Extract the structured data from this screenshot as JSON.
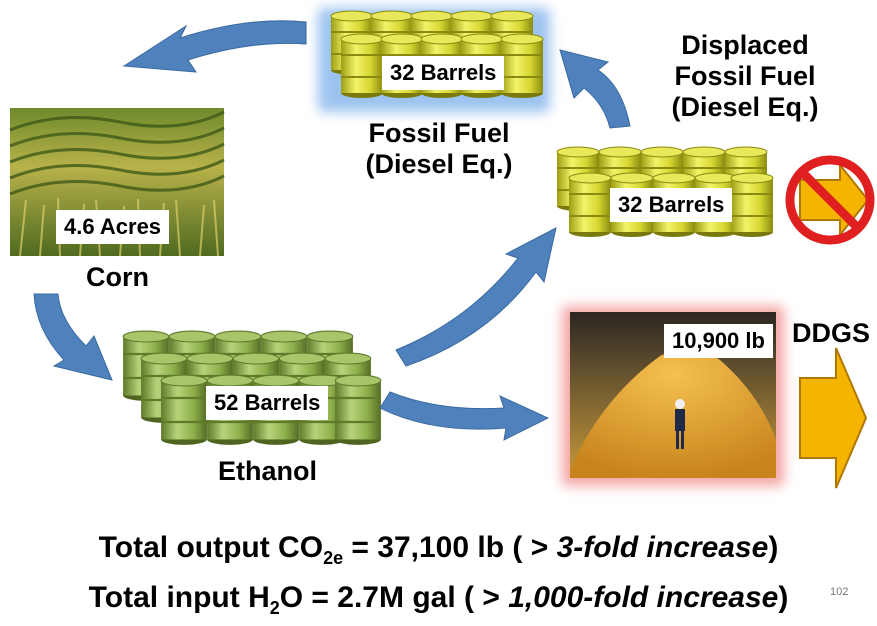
{
  "corn": {
    "area_label": "4.6 Acres",
    "caption": "Corn"
  },
  "ethanol": {
    "quantity_label": "52 Barrels",
    "caption": "Ethanol"
  },
  "fossil_fuel": {
    "quantity_label": "32 Barrels",
    "caption_line1": "Fossil Fuel",
    "caption_line2": "(Diesel Eq.)"
  },
  "displaced_fuel": {
    "quantity_label": "32 Barrels",
    "caption_line1": "Displaced",
    "caption_line2": "Fossil Fuel",
    "caption_line3": "(Diesel Eq.)"
  },
  "ddgs": {
    "weight_label": "10,900 lb",
    "caption": "DDGS"
  },
  "summary": {
    "line1_prefix": "Total output CO",
    "line1_subscript": "2e",
    "line1_value": " = 37,100 lb ( > ",
    "line1_emphasis": "3-fold increase",
    "line1_suffix": ")",
    "line2_prefix": "Total input H",
    "line2_subscript": "2",
    "line2_value": "O = 2.7M gal ( > ",
    "line2_emphasis": "1,000-fold increase",
    "line2_suffix": ")"
  },
  "page_number": "102",
  "colors": {
    "arrow_blue": "#4f81bd",
    "barrel_yellow": "#dede3c",
    "barrel_green": "#9bbb59",
    "ddgs_glow": "#f4a6a6",
    "fossil_glow": "#9cc3f0",
    "no_sign_red": "#e02020",
    "orange_arrow": "#f5b400"
  }
}
